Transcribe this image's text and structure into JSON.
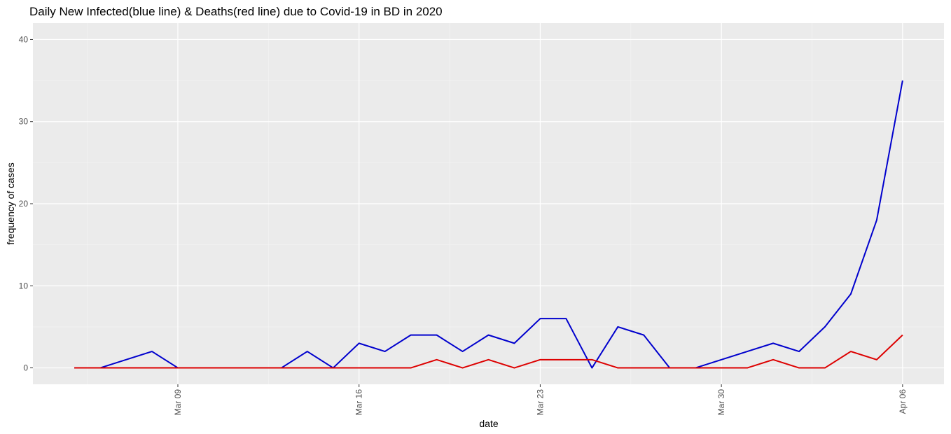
{
  "chart_data": {
    "type": "line",
    "title": "Daily New Infected(blue line) & Deaths(red line) due to Covid-19 in BD in 2020",
    "x_label": "date",
    "y_label": "frequency of cases",
    "x": [
      "2020-03-05",
      "2020-03-06",
      "2020-03-07",
      "2020-03-08",
      "2020-03-09",
      "2020-03-10",
      "2020-03-11",
      "2020-03-12",
      "2020-03-13",
      "2020-03-14",
      "2020-03-15",
      "2020-03-16",
      "2020-03-17",
      "2020-03-18",
      "2020-03-19",
      "2020-03-20",
      "2020-03-21",
      "2020-03-22",
      "2020-03-23",
      "2020-03-24",
      "2020-03-25",
      "2020-03-26",
      "2020-03-27",
      "2020-03-28",
      "2020-03-29",
      "2020-03-30",
      "2020-03-31",
      "2020-04-01",
      "2020-04-02",
      "2020-04-03",
      "2020-04-04",
      "2020-04-05",
      "2020-04-06"
    ],
    "series": [
      {
        "name": "Infected",
        "color": "#0000cd",
        "values": [
          0,
          0,
          1,
          2,
          0,
          0,
          0,
          0,
          0,
          2,
          0,
          3,
          2,
          4,
          4,
          2,
          4,
          3,
          6,
          6,
          0,
          5,
          4,
          0,
          0,
          1,
          2,
          3,
          2,
          5,
          9,
          18,
          35
        ]
      },
      {
        "name": "Deaths",
        "color": "#dd0000",
        "values": [
          0,
          0,
          0,
          0,
          0,
          0,
          0,
          0,
          0,
          0,
          0,
          0,
          0,
          0,
          1,
          0,
          1,
          0,
          1,
          1,
          1,
          0,
          0,
          0,
          0,
          0,
          0,
          1,
          0,
          0,
          2,
          1,
          4
        ]
      }
    ],
    "xlim": [
      "2020-03-03T09:36:00Z",
      "2020-04-07T14:24:00Z"
    ],
    "xticks": [
      {
        "value": "2020-03-09",
        "label": "Mar 09"
      },
      {
        "value": "2020-03-16",
        "label": "Mar 16"
      },
      {
        "value": "2020-03-23",
        "label": "Mar 23"
      },
      {
        "value": "2020-03-30",
        "label": "Mar 30"
      },
      {
        "value": "2020-04-06",
        "label": "Apr 06"
      }
    ],
    "ylim": [
      -2,
      42
    ],
    "yticks": [
      0,
      10,
      20,
      30,
      40
    ],
    "grid": true,
    "minor_grid": true
  }
}
